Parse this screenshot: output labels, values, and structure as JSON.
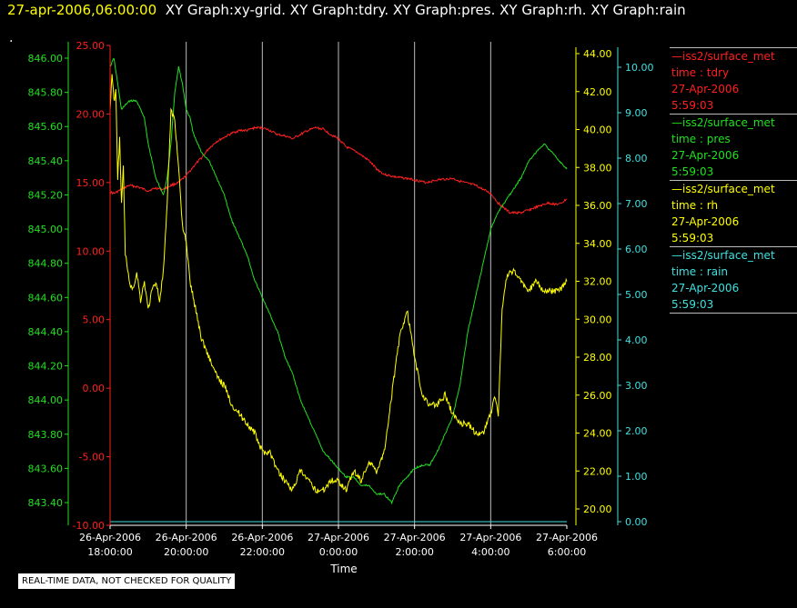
{
  "header": {
    "timestamp": "27-apr-2006,06:00:00",
    "graphs": "XY Graph:xy-grid.  XY Graph:tdry.  XY Graph:pres.  XY Graph:rh.  XY Graph:rain",
    "dot": "."
  },
  "footer": {
    "quality_notice": "REAL-TIME DATA, NOT CHECKED FOR QUALITY"
  },
  "colors": {
    "tdry": "#ff2020",
    "pres": "#20e020",
    "rh": "#ffff00",
    "rain": "#40e0e0",
    "grid": "#bbbbbb",
    "axis": "#ffffff"
  },
  "legend": [
    {
      "name": "iss2/surface_met",
      "field": "time : tdry",
      "date": "27-Apr-2006",
      "time": "5:59:03",
      "color": "#ff2020"
    },
    {
      "name": "iss2/surface_met",
      "field": "time : pres",
      "date": "27-Apr-2006",
      "time": "5:59:03",
      "color": "#20e020"
    },
    {
      "name": "iss2/surface_met",
      "field": "time : rh",
      "date": "27-Apr-2006",
      "time": "5:59:03",
      "color": "#ffff00"
    },
    {
      "name": "iss2/surface_met",
      "field": "time : rain",
      "date": "27-Apr-2006",
      "time": "5:59:03",
      "color": "#40e0e0"
    }
  ],
  "chart_data": {
    "type": "line",
    "xlabel": "Time",
    "x_ticks": [
      {
        "date": "26-Apr-2006",
        "time": "18:00:00"
      },
      {
        "date": "26-Apr-2006",
        "time": "20:00:00"
      },
      {
        "date": "26-Apr-2006",
        "time": "22:00:00"
      },
      {
        "date": "27-Apr-2006",
        "time": "0:00:00"
      },
      {
        "date": "27-Apr-2006",
        "time": "2:00:00"
      },
      {
        "date": "27-Apr-2006",
        "time": "4:00:00"
      },
      {
        "date": "27-Apr-2006",
        "time": "6:00:00"
      }
    ],
    "xlim": [
      "26-Apr-2006 18:00:00",
      "27-Apr-2006 6:00:00"
    ],
    "grid": true,
    "legend_position": "right",
    "axes": {
      "tdry": {
        "ylim": [
          -10,
          25
        ],
        "ticks": [
          "25.00",
          "20.00",
          "15.00",
          "10.00",
          "5.00",
          "0.00",
          "-5.00",
          "-10.00"
        ]
      },
      "pres": {
        "ylim": [
          843.3,
          846.1
        ],
        "ticks": [
          "846.00",
          "845.80",
          "845.60",
          "845.40",
          "845.20",
          "845.00",
          "844.80",
          "844.60",
          "844.40",
          "844.20",
          "844.00",
          "843.80",
          "843.60",
          "843.40"
        ]
      },
      "rh": {
        "ylim": [
          19.5,
          44
        ],
        "ticks": [
          "44.00",
          "42.00",
          "40.00",
          "38.00",
          "36.00",
          "34.00",
          "32.00",
          "30.00",
          "28.00",
          "26.00",
          "24.00",
          "22.00",
          "20.00"
        ]
      },
      "rain": {
        "ylim": [
          0,
          10.5
        ],
        "ticks": [
          "10.00",
          "9.00",
          "8.00",
          "7.00",
          "6.00",
          "5.00",
          "4.00",
          "3.00",
          "2.00",
          "1.00",
          "0.00"
        ]
      }
    },
    "series": [
      {
        "name": "tdry",
        "x": [
          0,
          0.1,
          0.3,
          0.5,
          0.7,
          0.9,
          1.0,
          1.2,
          1.4,
          1.6,
          1.8,
          2.0,
          2.2,
          2.4,
          2.6,
          2.8,
          3.0,
          3.2,
          3.4,
          3.6,
          3.8,
          4.0,
          4.2,
          4.4,
          4.6,
          4.8,
          5.0,
          5.2,
          5.4,
          5.6,
          5.8,
          6.0,
          6.2,
          6.5,
          6.8,
          7.0,
          7.2,
          7.5,
          7.8,
          8.0,
          8.3,
          8.6,
          9.0,
          9.3,
          9.6,
          9.8,
          10.0,
          10.2,
          10.5,
          10.8,
          11.0,
          11.2,
          11.5,
          11.8,
          12.0
        ],
        "y": [
          14.3,
          14.2,
          14.5,
          14.8,
          14.7,
          14.5,
          14.4,
          14.6,
          14.5,
          14.8,
          15.0,
          15.5,
          16.2,
          16.8,
          17.5,
          18.0,
          18.3,
          18.6,
          18.8,
          18.8,
          19.0,
          19.0,
          18.8,
          18.5,
          18.4,
          18.2,
          18.5,
          18.8,
          19.0,
          18.9,
          18.5,
          18.2,
          17.6,
          17.2,
          16.6,
          16.0,
          15.6,
          15.4,
          15.3,
          15.2,
          15.0,
          15.2,
          15.3,
          15.0,
          14.8,
          14.5,
          14.2,
          13.5,
          12.8,
          12.8,
          13.0,
          13.2,
          13.5,
          13.4,
          13.8
        ]
      },
      {
        "name": "pres",
        "x": [
          0,
          0.1,
          0.2,
          0.3,
          0.5,
          0.7,
          0.9,
          1.0,
          1.1,
          1.2,
          1.3,
          1.4,
          1.5,
          1.6,
          1.7,
          1.8,
          1.9,
          2.0,
          2.1,
          2.2,
          2.4,
          2.6,
          2.8,
          3.0,
          3.2,
          3.4,
          3.6,
          3.8,
          4.0,
          4.2,
          4.4,
          4.6,
          4.8,
          5.0,
          5.2,
          5.4,
          5.6,
          5.8,
          6.0,
          6.2,
          6.4,
          6.6,
          6.8,
          7.0,
          7.2,
          7.4,
          7.6,
          7.8,
          8.0,
          8.2,
          8.4,
          8.6,
          8.8,
          9.0,
          9.2,
          9.4,
          9.6,
          9.8,
          10.0,
          10.2,
          10.5,
          10.8,
          11.0,
          11.2,
          11.4,
          11.6,
          11.8,
          12.0
        ],
        "y": [
          845.95,
          846.0,
          845.85,
          845.7,
          845.75,
          845.75,
          845.65,
          845.5,
          845.4,
          845.3,
          845.25,
          845.2,
          845.3,
          845.5,
          845.8,
          845.95,
          845.85,
          845.7,
          845.65,
          845.55,
          845.45,
          845.4,
          845.3,
          845.2,
          845.05,
          844.95,
          844.85,
          844.7,
          844.6,
          844.5,
          844.4,
          844.25,
          844.15,
          844.0,
          843.9,
          843.8,
          843.7,
          843.65,
          843.6,
          843.55,
          843.55,
          843.5,
          843.5,
          843.45,
          843.45,
          843.4,
          843.5,
          843.55,
          843.6,
          843.62,
          843.62,
          843.7,
          843.8,
          843.9,
          844.1,
          844.4,
          844.6,
          844.8,
          845.0,
          845.1,
          845.2,
          845.3,
          845.4,
          845.45,
          845.5,
          845.45,
          845.4,
          845.35
        ]
      },
      {
        "name": "rh",
        "x": [
          0,
          0.05,
          0.1,
          0.15,
          0.2,
          0.25,
          0.3,
          0.35,
          0.4,
          0.5,
          0.6,
          0.7,
          0.8,
          0.9,
          1.0,
          1.1,
          1.2,
          1.3,
          1.4,
          1.5,
          1.6,
          1.7,
          1.8,
          1.9,
          2.0,
          2.1,
          2.2,
          2.3,
          2.4,
          2.6,
          2.8,
          3.0,
          3.2,
          3.4,
          3.6,
          3.8,
          4.0,
          4.2,
          4.4,
          4.6,
          4.8,
          5.0,
          5.2,
          5.4,
          5.6,
          5.8,
          6.0,
          6.2,
          6.4,
          6.6,
          6.8,
          7.0,
          7.2,
          7.4,
          7.6,
          7.8,
          8.0,
          8.2,
          8.4,
          8.6,
          8.8,
          9.0,
          9.2,
          9.4,
          9.6,
          9.8,
          10.0,
          10.1,
          10.2,
          10.3,
          10.4,
          10.5,
          10.6,
          10.8,
          11.0,
          11.2,
          11.4,
          11.6,
          11.8,
          12.0
        ],
        "y": [
          41.0,
          43.0,
          41.5,
          42.0,
          37.5,
          39.5,
          36.0,
          38.0,
          33.5,
          32.0,
          31.5,
          32.5,
          31.0,
          32.0,
          30.5,
          31.5,
          32.0,
          31.0,
          32.5,
          36.0,
          41.0,
          40.5,
          38.0,
          35.0,
          34.0,
          32.0,
          31.0,
          30.0,
          29.0,
          28.0,
          27.0,
          26.5,
          25.5,
          25.0,
          24.5,
          24.0,
          23.0,
          23.0,
          22.0,
          21.5,
          21.0,
          22.0,
          21.5,
          21.0,
          21.0,
          21.5,
          21.5,
          21.0,
          22.0,
          21.5,
          22.5,
          22.0,
          23.0,
          26.0,
          29.0,
          30.5,
          28.0,
          26.0,
          25.5,
          25.5,
          26.0,
          25.0,
          24.5,
          24.5,
          24.0,
          24.0,
          25.0,
          26.0,
          25.0,
          30.5,
          32.0,
          32.5,
          32.5,
          32.0,
          31.5,
          32.0,
          31.5,
          31.5,
          31.5,
          32.0
        ]
      },
      {
        "name": "rain",
        "x": [
          0,
          12
        ],
        "y": [
          0.0,
          0.0
        ]
      }
    ]
  }
}
